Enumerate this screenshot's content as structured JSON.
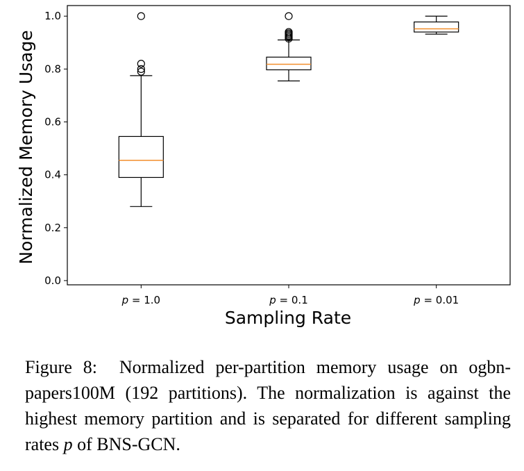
{
  "chart_data": {
    "type": "box",
    "xlabel": "Sampling Rate",
    "ylabel": "Normalized Memory Usage",
    "ylim": [
      0.0,
      1.0
    ],
    "yticks": [
      "0.0",
      "0.2",
      "0.4",
      "0.6",
      "0.8",
      "1.0"
    ],
    "ytick_values": [
      0.0,
      0.2,
      0.4,
      0.6,
      0.8,
      1.0
    ],
    "grid": false,
    "median_color": "#f28e2b",
    "box_color": "#000000",
    "categories": [
      {
        "var": "p",
        "rest": " = 1.0"
      },
      {
        "var": "p",
        "rest": " = 0.1"
      },
      {
        "var": "p",
        "rest": " = 0.01"
      }
    ],
    "boxes": [
      {
        "whisker_low": 0.28,
        "q1": 0.39,
        "median": 0.455,
        "q3": 0.545,
        "whisker_high": 0.775,
        "outliers": [
          0.79,
          0.8,
          0.82,
          1.0
        ]
      },
      {
        "whisker_low": 0.755,
        "q1": 0.797,
        "median": 0.818,
        "q3": 0.845,
        "whisker_high": 0.91,
        "outliers": [
          0.915,
          0.92,
          0.925,
          0.93,
          0.935,
          0.94,
          1.0
        ]
      },
      {
        "whisker_low": 0.932,
        "q1": 0.94,
        "median": 0.952,
        "q3": 0.978,
        "whisker_high": 1.0,
        "outliers": []
      }
    ]
  },
  "caption": {
    "label": "Figure 8:",
    "text_before": "Normalized per-partition memory usage on ogbn-papers100M (192 partitions).  The normalization is against the highest memory partition and is separated for different sampling rates ",
    "var": "p",
    "text_after": " of BNS-GCN."
  }
}
